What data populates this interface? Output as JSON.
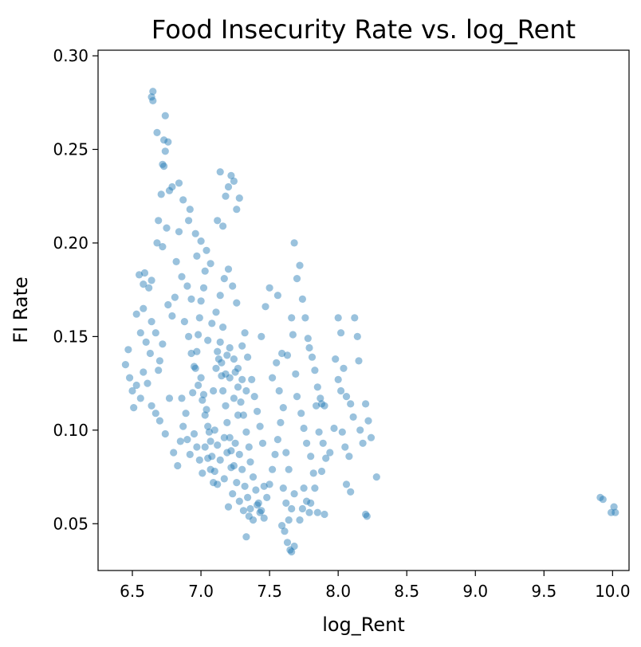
{
  "chart_data": {
    "type": "scatter",
    "title": "Food Insecurity Rate vs. log_Rent",
    "xlabel": "log_Rent",
    "ylabel": "FI Rate",
    "xlim": [
      6.25,
      10.12
    ],
    "ylim": [
      0.025,
      0.303
    ],
    "xticks": [
      "6.5",
      "7.0",
      "7.5",
      "8.0",
      "8.5",
      "9.0",
      "9.5",
      "10.0"
    ],
    "yticks": [
      "0.05",
      "0.10",
      "0.15",
      "0.20",
      "0.25",
      "0.30"
    ],
    "grid": false,
    "color": "#1f77b4",
    "alpha": 0.45,
    "series": [
      {
        "points": [
          [
            6.64,
            0.278
          ],
          [
            6.65,
            0.281
          ],
          [
            6.65,
            0.276
          ],
          [
            6.74,
            0.268
          ],
          [
            6.68,
            0.259
          ],
          [
            6.73,
            0.255
          ],
          [
            6.76,
            0.254
          ],
          [
            6.74,
            0.249
          ],
          [
            6.72,
            0.242
          ],
          [
            6.73,
            0.241
          ],
          [
            6.79,
            0.23
          ],
          [
            6.84,
            0.232
          ],
          [
            6.77,
            0.228
          ],
          [
            6.71,
            0.226
          ],
          [
            6.87,
            0.223
          ],
          [
            6.92,
            0.218
          ],
          [
            7.14,
            0.238
          ],
          [
            7.2,
            0.23
          ],
          [
            7.22,
            0.236
          ],
          [
            7.24,
            0.233
          ],
          [
            7.18,
            0.225
          ],
          [
            7.28,
            0.224
          ],
          [
            7.12,
            0.212
          ],
          [
            7.16,
            0.209
          ],
          [
            7.26,
            0.218
          ],
          [
            6.69,
            0.212
          ],
          [
            6.75,
            0.208
          ],
          [
            6.84,
            0.206
          ],
          [
            6.68,
            0.2
          ],
          [
            6.72,
            0.198
          ],
          [
            6.91,
            0.212
          ],
          [
            6.96,
            0.205
          ],
          [
            6.55,
            0.183
          ],
          [
            6.58,
            0.178
          ],
          [
            6.59,
            0.184
          ],
          [
            6.62,
            0.176
          ],
          [
            6.64,
            0.18
          ],
          [
            6.53,
            0.162
          ],
          [
            6.58,
            0.165
          ],
          [
            6.56,
            0.152
          ],
          [
            6.64,
            0.158
          ],
          [
            6.67,
            0.152
          ],
          [
            6.6,
            0.147
          ],
          [
            6.63,
            0.141
          ],
          [
            6.7,
            0.137
          ],
          [
            6.47,
            0.143
          ],
          [
            6.45,
            0.135
          ],
          [
            6.48,
            0.128
          ],
          [
            6.5,
            0.121
          ],
          [
            6.53,
            0.124
          ],
          [
            6.56,
            0.117
          ],
          [
            6.51,
            0.112
          ],
          [
            6.58,
            0.131
          ],
          [
            6.61,
            0.125
          ],
          [
            6.64,
            0.113
          ],
          [
            6.67,
            0.109
          ],
          [
            6.7,
            0.105
          ],
          [
            6.74,
            0.098
          ],
          [
            6.77,
            0.117
          ],
          [
            6.69,
            0.132
          ],
          [
            6.72,
            0.146
          ],
          [
            6.76,
            0.167
          ],
          [
            6.79,
            0.161
          ],
          [
            6.81,
            0.171
          ],
          [
            6.8,
            0.088
          ],
          [
            6.83,
            0.081
          ],
          [
            6.85,
            0.094
          ],
          [
            6.87,
            0.102
          ],
          [
            6.86,
            0.117
          ],
          [
            6.89,
            0.109
          ],
          [
            6.9,
            0.095
          ],
          [
            6.92,
            0.087
          ],
          [
            6.94,
            0.12
          ],
          [
            6.95,
            0.134
          ],
          [
            6.97,
            0.142
          ],
          [
            6.98,
            0.151
          ],
          [
            6.99,
            0.16
          ],
          [
            7.0,
            0.169
          ],
          [
            7.02,
            0.176
          ],
          [
            7.03,
            0.185
          ],
          [
            7.0,
            0.128
          ],
          [
            7.02,
            0.119
          ],
          [
            7.04,
            0.111
          ],
          [
            7.05,
            0.102
          ],
          [
            7.07,
            0.094
          ],
          [
            7.08,
            0.086
          ],
          [
            7.1,
            0.078
          ],
          [
            7.12,
            0.071
          ],
          [
            7.13,
            0.138
          ],
          [
            7.15,
            0.129
          ],
          [
            7.16,
            0.121
          ],
          [
            7.18,
            0.113
          ],
          [
            7.19,
            0.104
          ],
          [
            7.21,
            0.096
          ],
          [
            7.22,
            0.089
          ],
          [
            7.24,
            0.081
          ],
          [
            7.05,
            0.148
          ],
          [
            7.08,
            0.157
          ],
          [
            7.11,
            0.163
          ],
          [
            7.14,
            0.172
          ],
          [
            7.17,
            0.181
          ],
          [
            7.2,
            0.186
          ],
          [
            7.23,
            0.177
          ],
          [
            7.26,
            0.168
          ],
          [
            7.25,
            0.131
          ],
          [
            7.27,
            0.123
          ],
          [
            7.29,
            0.115
          ],
          [
            7.31,
            0.108
          ],
          [
            7.33,
            0.099
          ],
          [
            7.35,
            0.091
          ],
          [
            7.36,
            0.083
          ],
          [
            7.38,
            0.075
          ],
          [
            7.3,
            0.145
          ],
          [
            7.32,
            0.152
          ],
          [
            7.34,
            0.139
          ],
          [
            7.37,
            0.127
          ],
          [
            7.39,
            0.118
          ],
          [
            7.41,
            0.11
          ],
          [
            7.43,
            0.102
          ],
          [
            7.45,
            0.093
          ],
          [
            7.4,
            0.068
          ],
          [
            7.42,
            0.061
          ],
          [
            7.44,
            0.057
          ],
          [
            7.46,
            0.053
          ],
          [
            7.48,
            0.064
          ],
          [
            7.5,
            0.071
          ],
          [
            7.52,
            0.079
          ],
          [
            7.54,
            0.087
          ],
          [
            7.35,
            0.054
          ],
          [
            7.33,
            0.043
          ],
          [
            7.31,
            0.057
          ],
          [
            7.28,
            0.062
          ],
          [
            7.26,
            0.072
          ],
          [
            7.23,
            0.066
          ],
          [
            7.2,
            0.059
          ],
          [
            7.17,
            0.074
          ],
          [
            7.56,
            0.095
          ],
          [
            7.58,
            0.104
          ],
          [
            7.6,
            0.112
          ],
          [
            7.62,
            0.088
          ],
          [
            7.64,
            0.079
          ],
          [
            7.6,
            0.069
          ],
          [
            7.62,
            0.061
          ],
          [
            7.64,
            0.052
          ],
          [
            7.61,
            0.046
          ],
          [
            7.63,
            0.04
          ],
          [
            7.65,
            0.036
          ],
          [
            7.66,
            0.035
          ],
          [
            7.68,
            0.038
          ],
          [
            7.59,
            0.049
          ],
          [
            7.66,
            0.058
          ],
          [
            7.68,
            0.066
          ],
          [
            7.52,
            0.128
          ],
          [
            7.55,
            0.136
          ],
          [
            7.57,
            0.121
          ],
          [
            7.59,
            0.141
          ],
          [
            7.63,
            0.14
          ],
          [
            7.66,
            0.16
          ],
          [
            7.67,
            0.151
          ],
          [
            7.69,
            0.13
          ],
          [
            7.7,
            0.181
          ],
          [
            7.72,
            0.188
          ],
          [
            7.74,
            0.17
          ],
          [
            7.76,
            0.16
          ],
          [
            7.78,
            0.149
          ],
          [
            7.79,
            0.144
          ],
          [
            7.81,
            0.139
          ],
          [
            7.83,
            0.132
          ],
          [
            7.68,
            0.2
          ],
          [
            7.56,
            0.172
          ],
          [
            7.5,
            0.176
          ],
          [
            7.47,
            0.166
          ],
          [
            7.44,
            0.15
          ],
          [
            7.7,
            0.118
          ],
          [
            7.73,
            0.109
          ],
          [
            7.75,
            0.101
          ],
          [
            7.77,
            0.093
          ],
          [
            7.8,
            0.086
          ],
          [
            7.82,
            0.077
          ],
          [
            7.75,
            0.069
          ],
          [
            7.77,
            0.062
          ],
          [
            7.79,
            0.056
          ],
          [
            7.72,
            0.052
          ],
          [
            7.74,
            0.058
          ],
          [
            7.85,
            0.123
          ],
          [
            7.87,
            0.117
          ],
          [
            7.88,
            0.114
          ],
          [
            7.9,
            0.113
          ],
          [
            7.84,
            0.113
          ],
          [
            7.86,
            0.099
          ],
          [
            7.89,
            0.093
          ],
          [
            7.91,
            0.085
          ],
          [
            7.88,
            0.078
          ],
          [
            7.83,
            0.069
          ],
          [
            7.8,
            0.061
          ],
          [
            7.85,
            0.056
          ],
          [
            7.9,
            0.055
          ],
          [
            7.94,
            0.088
          ],
          [
            7.97,
            0.101
          ],
          [
            8.0,
            0.16
          ],
          [
            8.02,
            0.152
          ],
          [
            7.98,
            0.138
          ],
          [
            8.0,
            0.127
          ],
          [
            8.02,
            0.121
          ],
          [
            8.04,
            0.133
          ],
          [
            8.06,
            0.118
          ],
          [
            8.03,
            0.099
          ],
          [
            8.05,
            0.091
          ],
          [
            8.08,
            0.086
          ],
          [
            8.06,
            0.071
          ],
          [
            8.09,
            0.067
          ],
          [
            8.12,
            0.16
          ],
          [
            8.14,
            0.15
          ],
          [
            8.15,
            0.137
          ],
          [
            8.09,
            0.114
          ],
          [
            8.11,
            0.107
          ],
          [
            8.16,
            0.1
          ],
          [
            8.18,
            0.093
          ],
          [
            8.2,
            0.114
          ],
          [
            8.22,
            0.105
          ],
          [
            8.24,
            0.096
          ],
          [
            8.28,
            0.075
          ],
          [
            8.2,
            0.055
          ],
          [
            8.21,
            0.054
          ],
          [
            6.82,
            0.19
          ],
          [
            6.86,
            0.182
          ],
          [
            6.9,
            0.177
          ],
          [
            6.93,
            0.17
          ],
          [
            6.97,
            0.193
          ],
          [
            7.0,
            0.201
          ],
          [
            7.04,
            0.196
          ],
          [
            7.07,
            0.189
          ],
          [
            6.88,
            0.158
          ],
          [
            6.91,
            0.15
          ],
          [
            6.93,
            0.141
          ],
          [
            6.96,
            0.133
          ],
          [
            6.98,
            0.124
          ],
          [
            7.01,
            0.116
          ],
          [
            7.03,
            0.108
          ],
          [
            7.06,
            0.099
          ],
          [
            7.09,
            0.121
          ],
          [
            7.11,
            0.133
          ],
          [
            7.14,
            0.147
          ],
          [
            7.16,
            0.155
          ],
          [
            7.19,
            0.14
          ],
          [
            7.21,
            0.128
          ],
          [
            7.24,
            0.117
          ],
          [
            7.27,
            0.108
          ],
          [
            7.1,
            0.1
          ],
          [
            7.12,
            0.092
          ],
          [
            7.14,
            0.084
          ],
          [
            7.17,
            0.096
          ],
          [
            7.19,
            0.088
          ],
          [
            7.22,
            0.08
          ],
          [
            7.25,
            0.093
          ],
          [
            7.28,
            0.087
          ],
          [
            7.3,
            0.079
          ],
          [
            7.32,
            0.07
          ],
          [
            7.34,
            0.064
          ],
          [
            7.36,
            0.058
          ],
          [
            7.38,
            0.052
          ],
          [
            7.41,
            0.06
          ],
          [
            7.43,
            0.056
          ],
          [
            7.46,
            0.07
          ],
          [
            7.12,
            0.142
          ],
          [
            7.15,
            0.136
          ],
          [
            7.18,
            0.13
          ],
          [
            7.21,
            0.144
          ],
          [
            7.24,
            0.138
          ],
          [
            7.27,
            0.133
          ],
          [
            7.3,
            0.127
          ],
          [
            7.33,
            0.121
          ],
          [
            6.95,
            0.098
          ],
          [
            6.97,
            0.091
          ],
          [
            6.99,
            0.084
          ],
          [
            7.01,
            0.077
          ],
          [
            7.03,
            0.091
          ],
          [
            7.05,
            0.085
          ],
          [
            7.07,
            0.079
          ],
          [
            7.09,
            0.072
          ],
          [
            9.91,
            0.064
          ],
          [
            9.93,
            0.063
          ],
          [
            9.99,
            0.056
          ],
          [
            10.01,
            0.059
          ],
          [
            10.02,
            0.056
          ]
        ]
      }
    ]
  }
}
